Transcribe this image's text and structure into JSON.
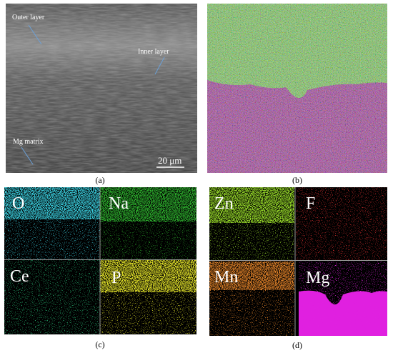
{
  "panels": [
    {
      "label": "(a)",
      "annotations": [
        "Outer layer",
        "Inner layer",
        "Mg matrix"
      ],
      "scale_bar": "20 μm"
    },
    {
      "label": "(b)"
    },
    {
      "label": "(c)",
      "maps": [
        "O",
        "Na",
        "Ce",
        "P"
      ]
    },
    {
      "label": "(d)",
      "maps": [
        "Zn",
        "F",
        "Mn",
        "Mg"
      ]
    }
  ]
}
